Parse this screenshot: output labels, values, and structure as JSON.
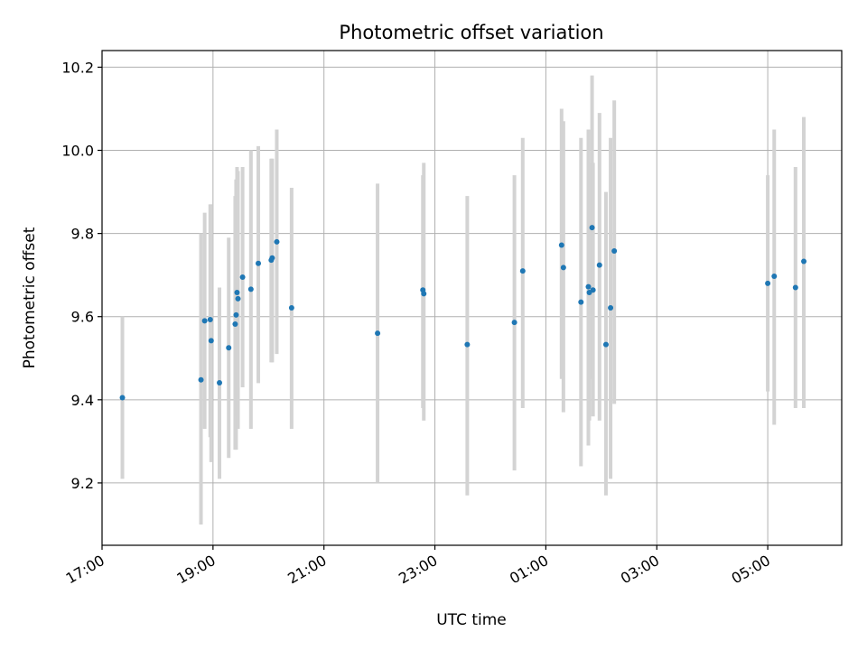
{
  "chart_data": {
    "type": "scatter",
    "title": "Photometric offset variation",
    "xlabel": "UTC time",
    "ylabel": "Photometric offset",
    "x_is_time": true,
    "xlim": [
      "17:00",
      "06:20"
    ],
    "ylim": [
      9.05,
      10.24
    ],
    "grid": true,
    "xticks": [
      "17:00",
      "19:00",
      "21:00",
      "23:00",
      "01:00",
      "03:00",
      "05:00"
    ],
    "yticks": [
      9.2,
      9.4,
      9.6,
      9.8,
      10.0,
      10.2
    ],
    "colors": {
      "point": "#1f77b4",
      "errorbar": "#d3d3d3",
      "grid": "#b0b0b0",
      "axes": "#000000"
    },
    "series": [
      {
        "points": [
          {
            "x": "17:22",
            "y": 9.405,
            "lo": 9.21,
            "hi": 9.6
          },
          {
            "x": "18:47",
            "y": 9.448,
            "lo": 9.1,
            "hi": 9.8
          },
          {
            "x": "18:51",
            "y": 9.59,
            "lo": 9.33,
            "hi": 9.85
          },
          {
            "x": "18:57",
            "y": 9.593,
            "lo": 9.31,
            "hi": 9.87
          },
          {
            "x": "18:58",
            "y": 9.542,
            "lo": 9.25,
            "hi": 9.87
          },
          {
            "x": "19:07",
            "y": 9.441,
            "lo": 9.21,
            "hi": 9.67
          },
          {
            "x": "19:17",
            "y": 9.525,
            "lo": 9.26,
            "hi": 9.79
          },
          {
            "x": "19:24",
            "y": 9.582,
            "lo": 9.28,
            "hi": 9.89
          },
          {
            "x": "19:25",
            "y": 9.604,
            "lo": 9.28,
            "hi": 9.93
          },
          {
            "x": "19:26",
            "y": 9.658,
            "lo": 9.36,
            "hi": 9.96
          },
          {
            "x": "19:27",
            "y": 9.643,
            "lo": 9.33,
            "hi": 9.95
          },
          {
            "x": "19:32",
            "y": 9.695,
            "lo": 9.43,
            "hi": 9.96
          },
          {
            "x": "19:41",
            "y": 9.666,
            "lo": 9.33,
            "hi": 10.0
          },
          {
            "x": "19:49",
            "y": 9.728,
            "lo": 9.44,
            "hi": 10.01
          },
          {
            "x": "20:03",
            "y": 9.736,
            "lo": 9.49,
            "hi": 9.98
          },
          {
            "x": "20:04",
            "y": 9.741,
            "lo": 9.49,
            "hi": 9.98
          },
          {
            "x": "20:09",
            "y": 9.78,
            "lo": 9.51,
            "hi": 10.05
          },
          {
            "x": "20:25",
            "y": 9.621,
            "lo": 9.33,
            "hi": 9.91
          },
          {
            "x": "21:58",
            "y": 9.56,
            "lo": 9.2,
            "hi": 9.92
          },
          {
            "x": "22:47",
            "y": 9.664,
            "lo": 9.38,
            "hi": 9.94
          },
          {
            "x": "22:48",
            "y": 9.655,
            "lo": 9.35,
            "hi": 9.97
          },
          {
            "x": "23:35",
            "y": 9.533,
            "lo": 9.17,
            "hi": 9.89
          },
          {
            "x": "00:26",
            "y": 9.586,
            "lo": 9.23,
            "hi": 9.94
          },
          {
            "x": "00:35",
            "y": 9.71,
            "lo": 9.38,
            "hi": 10.03
          },
          {
            "x": "01:17",
            "y": 9.772,
            "lo": 9.45,
            "hi": 10.1
          },
          {
            "x": "01:19",
            "y": 9.718,
            "lo": 9.37,
            "hi": 10.07
          },
          {
            "x": "01:38",
            "y": 9.635,
            "lo": 9.24,
            "hi": 10.03
          },
          {
            "x": "01:46",
            "y": 9.672,
            "lo": 9.29,
            "hi": 10.05
          },
          {
            "x": "01:47",
            "y": 9.658,
            "lo": 9.35,
            "hi": 9.97
          },
          {
            "x": "01:50",
            "y": 9.814,
            "lo": 9.45,
            "hi": 10.18
          },
          {
            "x": "01:51",
            "y": 9.664,
            "lo": 9.36,
            "hi": 9.97
          },
          {
            "x": "01:58",
            "y": 9.724,
            "lo": 9.35,
            "hi": 10.09
          },
          {
            "x": "02:05",
            "y": 9.533,
            "lo": 9.17,
            "hi": 9.9
          },
          {
            "x": "02:10",
            "y": 9.621,
            "lo": 9.21,
            "hi": 10.03
          },
          {
            "x": "02:14",
            "y": 9.758,
            "lo": 9.39,
            "hi": 10.12
          },
          {
            "x": "05:00",
            "y": 9.68,
            "lo": 9.42,
            "hi": 9.94
          },
          {
            "x": "05:07",
            "y": 9.697,
            "lo": 9.34,
            "hi": 10.05
          },
          {
            "x": "05:30",
            "y": 9.67,
            "lo": 9.38,
            "hi": 9.96
          },
          {
            "x": "05:39",
            "y": 9.733,
            "lo": 9.38,
            "hi": 10.08
          }
        ]
      }
    ]
  }
}
